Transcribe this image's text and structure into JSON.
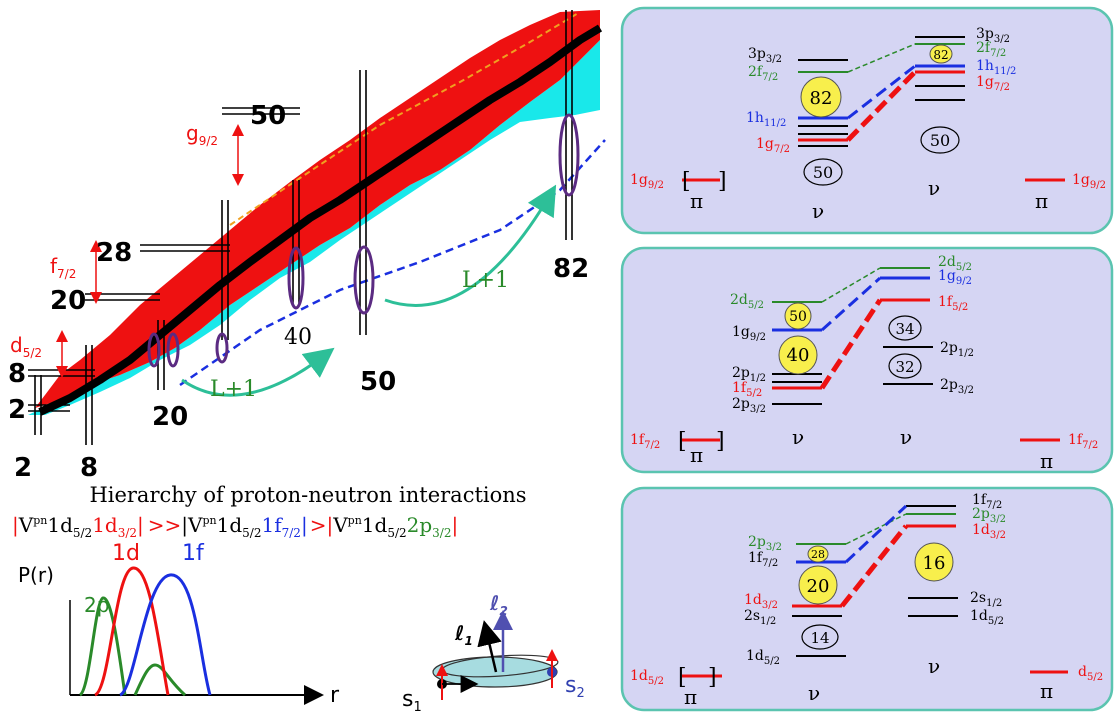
{
  "colors": {
    "red": "#ee1111",
    "blue": "#1a2fe0",
    "green": "#2a8a2a",
    "cyan": "#19e8ea",
    "purple": "#5b2b82",
    "panel_bg": "#d5d5f3",
    "panel_border": "#5bc4b0",
    "yellow": "#f8ef4c",
    "teal_arrow": "#2dbf98",
    "orange": "#f0a020"
  },
  "chart": {
    "magic_numbers": [
      "50",
      "28",
      "20",
      "8",
      "2",
      "82",
      "40",
      "50",
      "20",
      "2",
      "8"
    ],
    "orbital_labels": {
      "g": "g",
      "g_sub": "9/2",
      "f": "f",
      "f_sub": "7/2",
      "d": "d",
      "d_sub": "5/2"
    },
    "arrow_label_1": "L+1",
    "arrow_label_2": "L+1"
  },
  "hierarchy": {
    "title": "Hierarchy of proton-neutron interactions",
    "bar": "|",
    "v1": "V",
    "v2": "V",
    "v3": "V",
    "pn": "pn",
    "t1a": "1d",
    "t1a_sub": "5/2",
    "t1b": "1d",
    "t1b_sub": "3/2",
    "gt1": ">>",
    "t2a": "1d",
    "t2a_sub": "5/2",
    "t2b": "1f",
    "t2b_sub": "7/2",
    "gt2": ">",
    "t3a": "1d",
    "t3a_sub": "5/2",
    "t3b": "2p",
    "t3b_sub": "3/2"
  },
  "radial": {
    "ylabel": "P(r)",
    "xlabel": "r",
    "curves": [
      "2p",
      "1d",
      "1f"
    ]
  },
  "spin": {
    "l1": "ℓ",
    "l1_sub": "1",
    "l2": "ℓ",
    "l2_sub": "2",
    "s1": "s",
    "s1_sub": "1",
    "s2": "s",
    "s2_sub": "2"
  },
  "panels": [
    {
      "pi_left": "π",
      "nu_left": "ν",
      "nu_right": "ν",
      "pi_right": "π",
      "left_proton": {
        "t": "1g",
        "s": "9/2"
      },
      "right_proton": {
        "t": "1g",
        "s": "9/2"
      },
      "left_levels": [
        {
          "t": "3p",
          "s": "3/2",
          "color": "black"
        },
        {
          "t": "2f",
          "s": "7/2",
          "color": "green"
        },
        {
          "t": "1h",
          "s": "11/2",
          "color": "blue"
        },
        {
          "t": "1g",
          "s": "7/2",
          "color": "red"
        }
      ],
      "right_levels": [
        {
          "t": "3p",
          "s": "3/2",
          "color": "black"
        },
        {
          "t": "2f",
          "s": "7/2",
          "color": "green"
        },
        {
          "t": "1h",
          "s": "11/2",
          "color": "blue"
        },
        {
          "t": "1g",
          "s": "7/2",
          "color": "red"
        }
      ],
      "yellow_big": "82",
      "yellow_small": "82",
      "ellipse_left": "50",
      "ellipse_right": "50"
    },
    {
      "pi_left": "π",
      "nu_left": "ν",
      "nu_right": "ν",
      "pi_right": "π",
      "left_proton": {
        "t": "1f",
        "s": "7/2"
      },
      "right_proton": {
        "t": "1f",
        "s": "7/2"
      },
      "left_levels": [
        {
          "t": "2d",
          "s": "5/2",
          "color": "green"
        },
        {
          "t": "1g",
          "s": "9/2",
          "color": "black"
        },
        {
          "t": "2p",
          "s": "1/2",
          "color": "black"
        },
        {
          "t": "1f",
          "s": "5/2",
          "color": "red"
        },
        {
          "t": "2p",
          "s": "3/2",
          "color": "black"
        }
      ],
      "right_levels": [
        {
          "t": "2d",
          "s": "5/2",
          "color": "green"
        },
        {
          "t": "1g",
          "s": "9/2",
          "color": "blue"
        },
        {
          "t": "1f",
          "s": "5/2",
          "color": "red"
        },
        {
          "t": "2p",
          "s": "1/2",
          "color": "black"
        },
        {
          "t": "2p",
          "s": "3/2",
          "color": "black"
        }
      ],
      "yellow_small": "50",
      "yellow_big": "40",
      "ellipse_top": "34",
      "ellipse_bottom": "32"
    },
    {
      "pi_left": "π",
      "nu_left": "ν",
      "nu_right": "ν",
      "pi_right": "π",
      "left_proton": {
        "t": "1d",
        "s": "5/2"
      },
      "right_proton": {
        "t": "d",
        "s": "5/2"
      },
      "left_levels": [
        {
          "t": "2p",
          "s": "3/2",
          "color": "green"
        },
        {
          "t": "1f",
          "s": "7/2",
          "color": "black"
        },
        {
          "t": "1d",
          "s": "3/2",
          "color": "red"
        },
        {
          "t": "2s",
          "s": "1/2",
          "color": "black"
        },
        {
          "t": "1d",
          "s": "5/2",
          "color": "black"
        }
      ],
      "right_levels": [
        {
          "t": "1f",
          "s": "7/2",
          "color": "black"
        },
        {
          "t": "2p",
          "s": "3/2",
          "color": "green"
        },
        {
          "t": "1d",
          "s": "3/2",
          "color": "red"
        },
        {
          "t": "2s",
          "s": "1/2",
          "color": "black"
        },
        {
          "t": "1d",
          "s": "5/2",
          "color": "black"
        }
      ],
      "yellow_small": "28",
      "yellow_big": "20",
      "yellow_right": "16",
      "ellipse_left": "14"
    }
  ]
}
